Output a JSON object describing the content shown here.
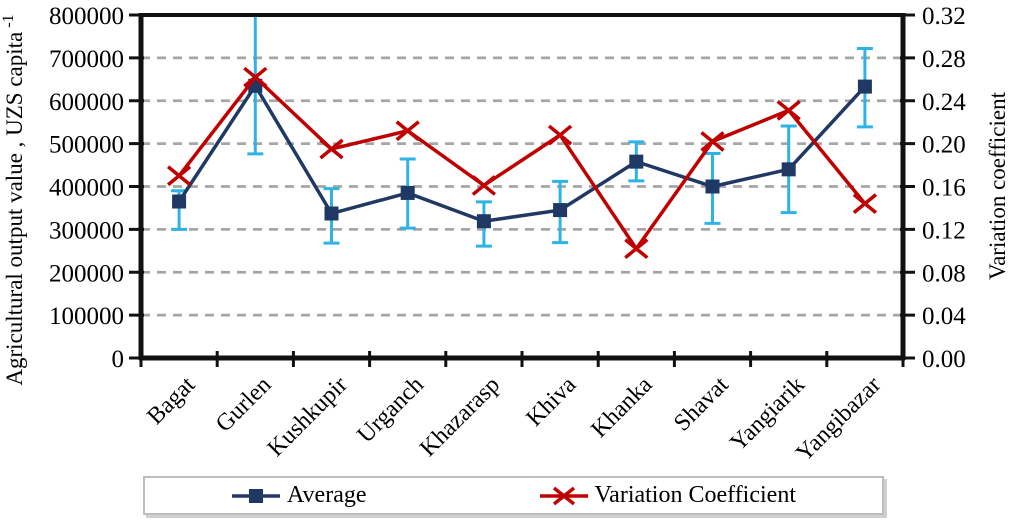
{
  "colors": {
    "average": "#1f3864",
    "variation_coefficient": "#c00000",
    "error_bar": "#2eb3e6",
    "grid": "#a6a6a6",
    "axis": "#111111"
  },
  "legend": {
    "items": [
      {
        "label": "Average"
      },
      {
        "label": "Variation Coefficient"
      }
    ]
  },
  "chart_data": {
    "type": "line",
    "grid": "horizontal-dashed",
    "legend_position": "bottom",
    "categories": [
      "Bagat",
      "Gurlen",
      "Kushkupir",
      "Urganch",
      "Khazarasp",
      "Khiva",
      "Khanka",
      "Shavat",
      "Yangiarik",
      "Yangibazar"
    ],
    "left_axis": {
      "title": "Agricultural output value , UZS capita",
      "title_superscript": "-1",
      "min": 0,
      "max": 800000,
      "step": 100000,
      "tick_labels": [
        "800000",
        "700000",
        "600000",
        "500000",
        "400000",
        "300000",
        "200000",
        "100000",
        "0"
      ]
    },
    "right_axis": {
      "title": "Variation coefficient",
      "min": 0,
      "max": 0.32,
      "step": 0.04,
      "tick_labels": [
        "0.32",
        "0.28",
        "0.24",
        "0.20",
        "0.16",
        "0.12",
        "0.08",
        "0.04",
        "0.00"
      ]
    },
    "series": [
      {
        "name": "Average",
        "axis": "left",
        "marker": "square",
        "values": [
          365000,
          635000,
          337000,
          385000,
          319000,
          345000,
          458000,
          400000,
          440000,
          633000
        ],
        "error_low": [
          300000,
          476000,
          268000,
          303000,
          261000,
          269000,
          413000,
          314000,
          339000,
          539000
        ],
        "error_high": [
          390000,
          800000,
          395000,
          464000,
          364000,
          412000,
          504000,
          477000,
          541000,
          722000
        ]
      },
      {
        "name": "Variation Coefficient",
        "axis": "right",
        "marker": "x",
        "values": [
          0.17,
          0.262,
          0.195,
          0.212,
          0.161,
          0.208,
          0.102,
          0.202,
          0.231,
          0.144
        ]
      }
    ]
  }
}
